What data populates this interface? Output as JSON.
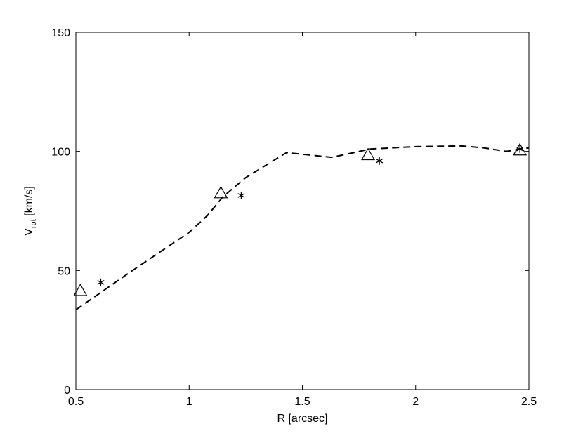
{
  "chart_data": {
    "type": "line",
    "title": "",
    "xlabel": "R [arcsec]",
    "ylabel": {
      "main": "V",
      "sub": "rot",
      "rest": " [km/s]"
    },
    "xlim": [
      0.5,
      2.5
    ],
    "ylim": [
      0,
      150
    ],
    "x_ticks": [
      0.5,
      1,
      1.5,
      2,
      2.5
    ],
    "x_tick_labels": [
      "0.5",
      "1",
      "1.5",
      "2",
      "2.5"
    ],
    "y_ticks": [
      0,
      50,
      100,
      150
    ],
    "y_tick_labels": [
      "0",
      "50",
      "100",
      "150"
    ],
    "grid": false,
    "series": [
      {
        "style": "dashed-line",
        "color": "#000000",
        "x": [
          0.5,
          0.75,
          1.0,
          1.08,
          1.15,
          1.25,
          1.43,
          1.63,
          1.8,
          2.0,
          2.2,
          2.3,
          2.4,
          2.5
        ],
        "y": [
          33.5,
          50,
          66,
          73,
          81,
          89,
          99.5,
          97.5,
          101,
          102,
          102.3,
          101.5,
          100,
          101.5
        ]
      },
      {
        "style": "triangle-markers",
        "color": "#000000",
        "x": [
          0.52,
          1.14,
          1.79,
          2.46
        ],
        "y": [
          41.5,
          82.5,
          98.5,
          100.5
        ]
      },
      {
        "style": "star-markers",
        "color": "#000000",
        "x": [
          0.61,
          1.23,
          1.84,
          2.46
        ],
        "y": [
          45,
          81.5,
          96,
          101
        ]
      }
    ]
  }
}
